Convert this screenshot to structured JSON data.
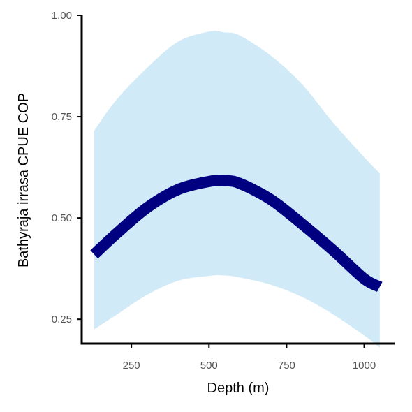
{
  "chart_data": {
    "type": "area",
    "title": "",
    "xlabel": "Depth (m)",
    "ylabel": "Bathyraja irrasa  CPUE COP",
    "xlim": [
      90,
      1100
    ],
    "ylim": [
      0.19,
      1.0
    ],
    "x_ticks": [
      250,
      500,
      750,
      1000
    ],
    "x_tick_labels": [
      "250",
      "500",
      "750",
      "1000"
    ],
    "y_ticks": [
      0.25,
      0.5,
      0.75,
      1.0
    ],
    "y_tick_labels": [
      "0.25",
      "0.50",
      "0.75",
      "1.00"
    ],
    "grid": false,
    "legend": "none",
    "colors": {
      "line": "#000080",
      "ribbon": "#d1eaf7",
      "axis": "#000000"
    },
    "series": [
      {
        "x": [
          130,
          200,
          300,
          400,
          500,
          550,
          600,
          700,
          800,
          900,
          1000,
          1050
        ],
        "y": [
          0.41,
          0.46,
          0.525,
          0.57,
          0.59,
          0.592,
          0.585,
          0.545,
          0.485,
          0.42,
          0.35,
          0.33
        ],
        "upper": [
          0.715,
          0.79,
          0.87,
          0.935,
          0.96,
          0.958,
          0.95,
          0.9,
          0.83,
          0.735,
          0.65,
          0.61
        ],
        "lower": [
          0.225,
          0.26,
          0.31,
          0.345,
          0.357,
          0.358,
          0.353,
          0.335,
          0.305,
          0.262,
          0.21,
          0.18
        ]
      }
    ]
  }
}
